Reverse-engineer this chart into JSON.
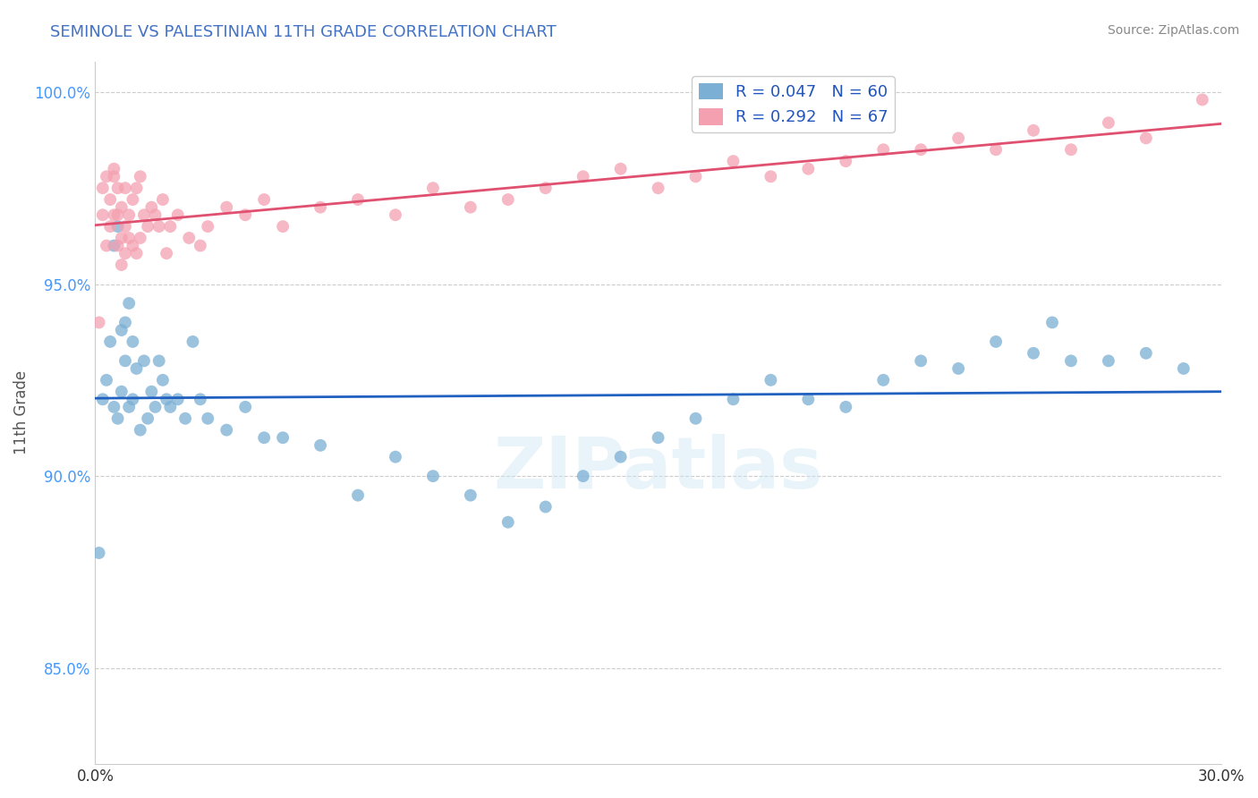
{
  "title": "SEMINOLE VS PALESTINIAN 11TH GRADE CORRELATION CHART",
  "source_text": "Source: ZipAtlas.com",
  "ylabel": "11th Grade",
  "xlim": [
    0.0,
    0.3
  ],
  "ylim": [
    0.825,
    1.008
  ],
  "xticks": [
    0.0,
    0.05,
    0.1,
    0.15,
    0.2,
    0.25,
    0.3
  ],
  "xtick_labels": [
    "0.0%",
    "",
    "",
    "",
    "",
    "",
    "30.0%"
  ],
  "yticks": [
    0.85,
    0.9,
    0.95,
    1.0
  ],
  "ytick_labels": [
    "85.0%",
    "90.0%",
    "95.0%",
    "100.0%"
  ],
  "seminole_color": "#7bafd4",
  "palestinian_color": "#f4a0b0",
  "seminole_line_color": "#2060c0",
  "palestinian_line_color": "#e05070",
  "seminole_R": 0.047,
  "seminole_N": 60,
  "palestinian_R": 0.292,
  "palestinian_N": 67,
  "watermark": "ZIPatlas",
  "grid_color": "#cccccc",
  "background_color": "#ffffff",
  "title_color": "#4472c4",
  "seminole_x": [
    0.001,
    0.002,
    0.003,
    0.004,
    0.005,
    0.005,
    0.006,
    0.006,
    0.007,
    0.007,
    0.008,
    0.008,
    0.009,
    0.009,
    0.01,
    0.01,
    0.011,
    0.012,
    0.013,
    0.014,
    0.015,
    0.016,
    0.017,
    0.018,
    0.019,
    0.02,
    0.022,
    0.024,
    0.026,
    0.028,
    0.03,
    0.035,
    0.04,
    0.045,
    0.05,
    0.06,
    0.07,
    0.08,
    0.09,
    0.1,
    0.11,
    0.12,
    0.13,
    0.14,
    0.15,
    0.16,
    0.17,
    0.18,
    0.19,
    0.2,
    0.21,
    0.22,
    0.23,
    0.24,
    0.25,
    0.255,
    0.26,
    0.27,
    0.28,
    0.29
  ],
  "seminole_y": [
    0.88,
    0.92,
    0.925,
    0.935,
    0.918,
    0.96,
    0.915,
    0.965,
    0.938,
    0.922,
    0.94,
    0.93,
    0.918,
    0.945,
    0.92,
    0.935,
    0.928,
    0.912,
    0.93,
    0.915,
    0.922,
    0.918,
    0.93,
    0.925,
    0.92,
    0.918,
    0.92,
    0.915,
    0.935,
    0.92,
    0.915,
    0.912,
    0.918,
    0.91,
    0.91,
    0.908,
    0.895,
    0.905,
    0.9,
    0.895,
    0.888,
    0.892,
    0.9,
    0.905,
    0.91,
    0.915,
    0.92,
    0.925,
    0.92,
    0.918,
    0.925,
    0.93,
    0.928,
    0.935,
    0.932,
    0.94,
    0.93,
    0.93,
    0.932,
    0.928
  ],
  "palestinian_x": [
    0.001,
    0.002,
    0.002,
    0.003,
    0.003,
    0.004,
    0.004,
    0.005,
    0.005,
    0.005,
    0.006,
    0.006,
    0.006,
    0.007,
    0.007,
    0.007,
    0.008,
    0.008,
    0.008,
    0.009,
    0.009,
    0.01,
    0.01,
    0.011,
    0.011,
    0.012,
    0.012,
    0.013,
    0.014,
    0.015,
    0.016,
    0.017,
    0.018,
    0.019,
    0.02,
    0.022,
    0.025,
    0.028,
    0.03,
    0.035,
    0.04,
    0.045,
    0.05,
    0.06,
    0.07,
    0.08,
    0.09,
    0.1,
    0.11,
    0.12,
    0.13,
    0.14,
    0.15,
    0.16,
    0.17,
    0.18,
    0.19,
    0.2,
    0.21,
    0.22,
    0.23,
    0.24,
    0.25,
    0.26,
    0.27,
    0.28,
    0.295
  ],
  "palestinian_y": [
    0.94,
    0.975,
    0.968,
    0.96,
    0.978,
    0.965,
    0.972,
    0.968,
    0.98,
    0.978,
    0.96,
    0.968,
    0.975,
    0.955,
    0.97,
    0.962,
    0.965,
    0.958,
    0.975,
    0.962,
    0.968,
    0.96,
    0.972,
    0.958,
    0.975,
    0.962,
    0.978,
    0.968,
    0.965,
    0.97,
    0.968,
    0.965,
    0.972,
    0.958,
    0.965,
    0.968,
    0.962,
    0.96,
    0.965,
    0.97,
    0.968,
    0.972,
    0.965,
    0.97,
    0.972,
    0.968,
    0.975,
    0.97,
    0.972,
    0.975,
    0.978,
    0.98,
    0.975,
    0.978,
    0.982,
    0.978,
    0.98,
    0.982,
    0.985,
    0.985,
    0.988,
    0.985,
    0.99,
    0.985,
    0.992,
    0.988,
    0.998
  ]
}
